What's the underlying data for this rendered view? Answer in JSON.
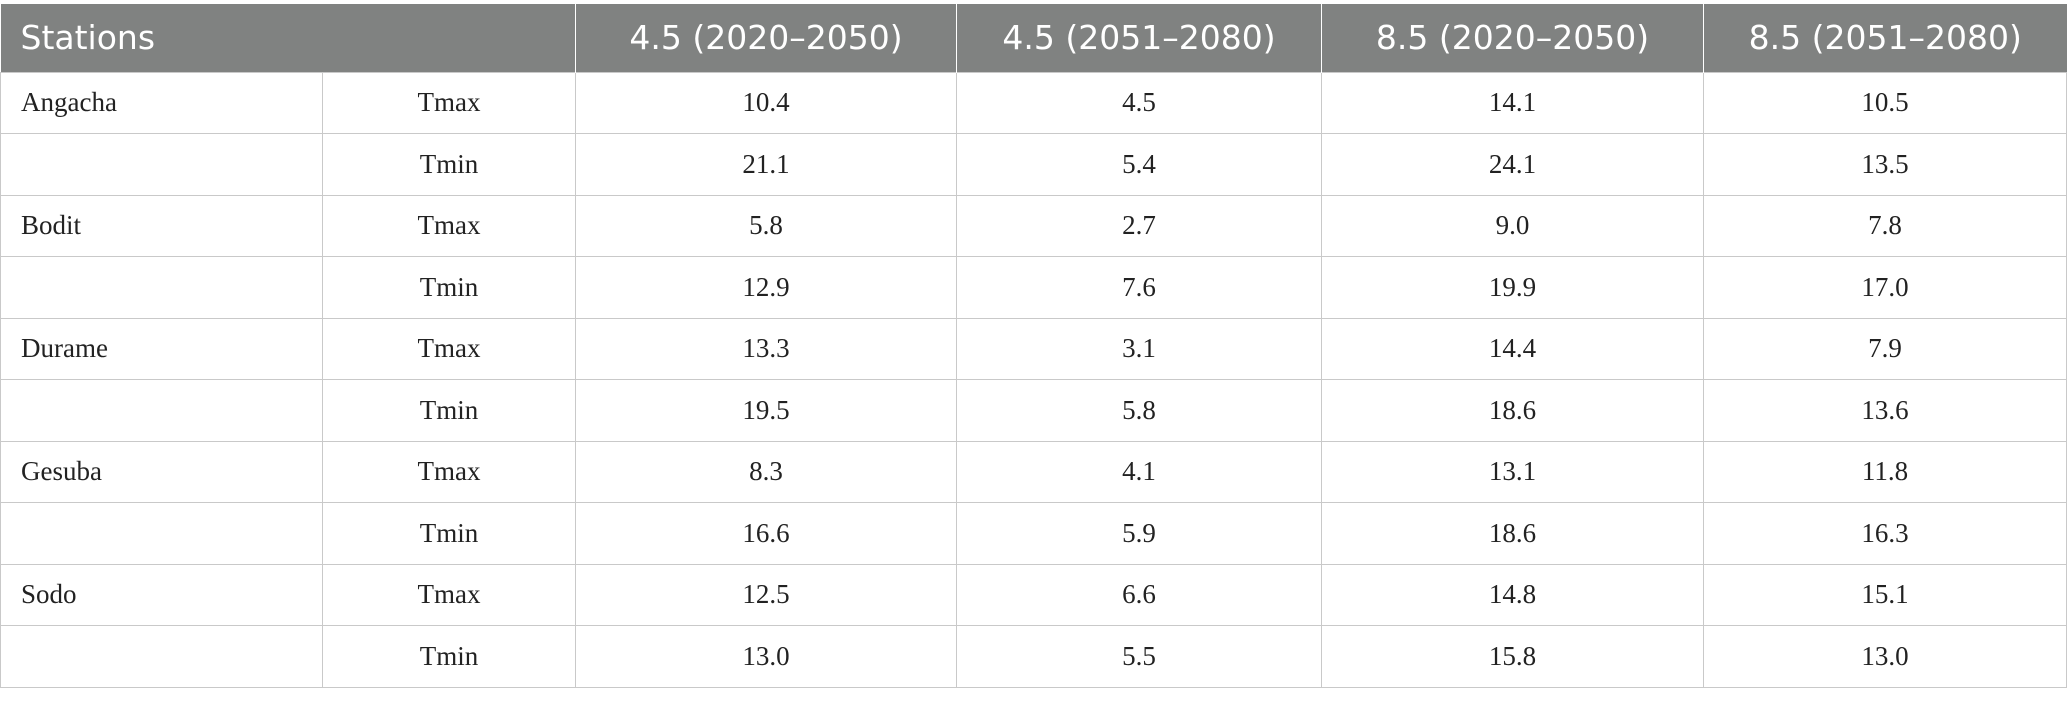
{
  "table": {
    "headers": [
      "Stations",
      "",
      "4.5 (2020–2050)",
      "4.5 (2051–2080)",
      "8.5 (2020–2050)",
      "8.5 (2051–2080)"
    ],
    "rows": [
      [
        "Angacha",
        "Tmax",
        "10.4",
        "4.5",
        "14.1",
        "10.5"
      ],
      [
        "",
        "Tmin",
        "21.1",
        "5.4",
        "24.1",
        "13.5"
      ],
      [
        "Bodit",
        "Tmax",
        "5.8",
        "2.7",
        "9.0",
        "7.8"
      ],
      [
        "",
        "Tmin",
        "12.9",
        "7.6",
        "19.9",
        "17.0"
      ],
      [
        "Durame",
        "Tmax",
        "13.3",
        "3.1",
        "14.4",
        "7.9"
      ],
      [
        "",
        "Tmin",
        "19.5",
        "5.8",
        "18.6",
        "13.6"
      ],
      [
        "Gesuba",
        "Tmax",
        "8.3",
        "4.1",
        "13.1",
        "11.8"
      ],
      [
        "",
        "Tmin",
        "16.6",
        "5.9",
        "18.6",
        "16.3"
      ],
      [
        "Sodo",
        "Tmax",
        "12.5",
        "6.6",
        "14.8",
        "15.1"
      ],
      [
        "",
        "Tmin",
        "13.0",
        "5.5",
        "15.8",
        "13.0"
      ]
    ]
  },
  "colors": {
    "header_bg": "#808281",
    "header_text": "#ffffff",
    "grid_line": "#c9c9c9",
    "body_text": "#222222"
  }
}
